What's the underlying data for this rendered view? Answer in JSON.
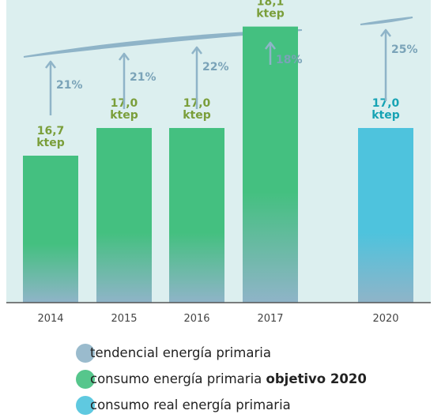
{
  "chart_data": {
    "type": "bar",
    "categories": [
      "2014",
      "2015",
      "2016",
      "2017",
      "2020"
    ],
    "values": [
      16.7,
      17.0,
      17.0,
      18.1,
      17.0
    ],
    "value_labels": [
      "16,7",
      "17,0",
      "17,0",
      "18,1",
      "17,0"
    ],
    "unit": "ktep",
    "percent_labels": [
      "21%",
      "21%",
      "22%",
      "18%",
      "25%"
    ],
    "bar_series": [
      "objetivo",
      "objetivo",
      "objetivo",
      "objetivo",
      "real"
    ],
    "grid": false,
    "legend_position": "bottom-left",
    "legend": [
      {
        "key": "tendencial",
        "label": "tendencial energía primaria",
        "label_bold": "",
        "color": "#8fb4c8"
      },
      {
        "key": "objetivo",
        "label": "consumo energía primaria ",
        "label_bold": "objetivo 2020",
        "color": "#44c080"
      },
      {
        "key": "real",
        "label": "consumo real energía primaria",
        "label_bold": "",
        "color": "#4ec3dd"
      }
    ],
    "colors": {
      "panel": "#dcefef",
      "axis": "#555555",
      "arrow": "#8fb4c8",
      "percent_text": "#7aa3b8",
      "label_objetivo": "#7a9e3a",
      "label_real": "#17a3b4",
      "year_text": "#444444",
      "bar_bottom": "#8fb4c8"
    }
  }
}
